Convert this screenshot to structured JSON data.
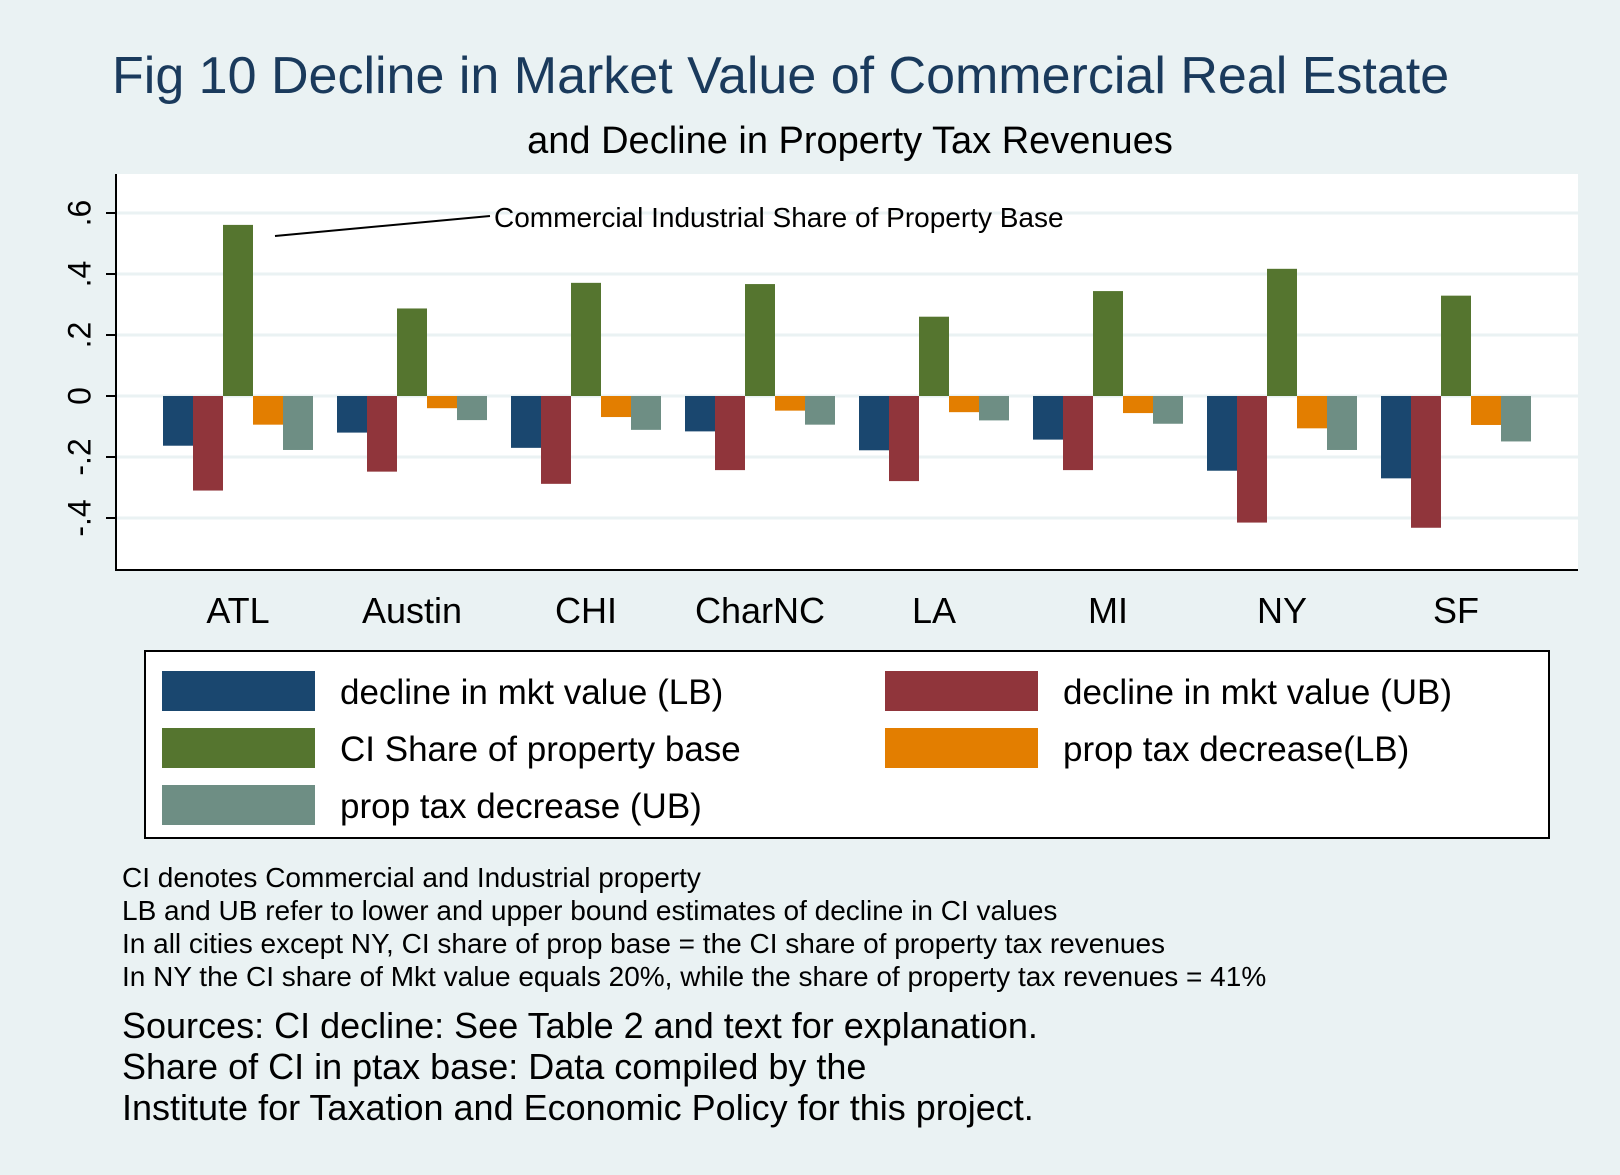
{
  "chart_data": {
    "type": "bar",
    "title": "Fig 10 Decline in Market Value of Commercial Real Estate",
    "subtitle": "and Decline in Property Tax Revenues",
    "xlabel": "",
    "ylabel": "",
    "ylim": [
      -0.55,
      0.72
    ],
    "yticks": [
      -0.4,
      -0.2,
      0,
      0.2,
      0.4,
      0.6
    ],
    "ytick_labels": [
      "-.4",
      "-.2",
      "0",
      ".2",
      ".4",
      ".6"
    ],
    "grid": true,
    "legend_position": "bottom",
    "categories": [
      "ATL",
      "Austin",
      "CHI",
      "CharNC",
      "LA",
      "MI",
      "NY",
      "SF"
    ],
    "series": [
      {
        "name": "decline in mkt value (LB)",
        "color": "#1a476f",
        "values": [
          -0.163,
          -0.12,
          -0.17,
          -0.116,
          -0.178,
          -0.143,
          -0.245,
          -0.27
        ]
      },
      {
        "name": "decline in mkt value (UB)",
        "color": "#90353b",
        "values": [
          -0.31,
          -0.248,
          -0.288,
          -0.243,
          -0.279,
          -0.243,
          -0.415,
          -0.432
        ]
      },
      {
        "name": "CI Share of property base",
        "color": "#55752f",
        "values": [
          0.561,
          0.287,
          0.371,
          0.367,
          0.26,
          0.344,
          0.417,
          0.329
        ]
      },
      {
        "name": "prop tax decrease(LB)",
        "color": "#e37e00",
        "values": [
          -0.094,
          -0.04,
          -0.069,
          -0.048,
          -0.053,
          -0.056,
          -0.106,
          -0.095
        ]
      },
      {
        "name": "prop tax decrease (UB)",
        "color": "#6e8e84",
        "values": [
          -0.177,
          -0.079,
          -0.111,
          -0.094,
          -0.08,
          -0.091,
          -0.177,
          -0.149
        ]
      }
    ],
    "annotation": "Commercial Industrial Share of Property Base",
    "notes": [
      "CI denotes Commercial and Industrial property",
      "LB and UB refer to  lower and upper bound estimates of decline in CI values",
      "In all cities except NY, CI share of prop base = the CI share of property tax revenues",
      "In NY the CI share of Mkt value equals 20%, while the share of property tax revenues = 41%"
    ],
    "sources": [
      "Sources: CI decline: See Table 2 and text for explanation.",
      "Share of CI in ptax base: Data compiled by the",
      "Institute for Taxation and Economic Policy for this project."
    ]
  },
  "colors": {
    "background": "#eaf2f3",
    "plot_background": "#ffffff",
    "title": "#1a3a5c"
  }
}
